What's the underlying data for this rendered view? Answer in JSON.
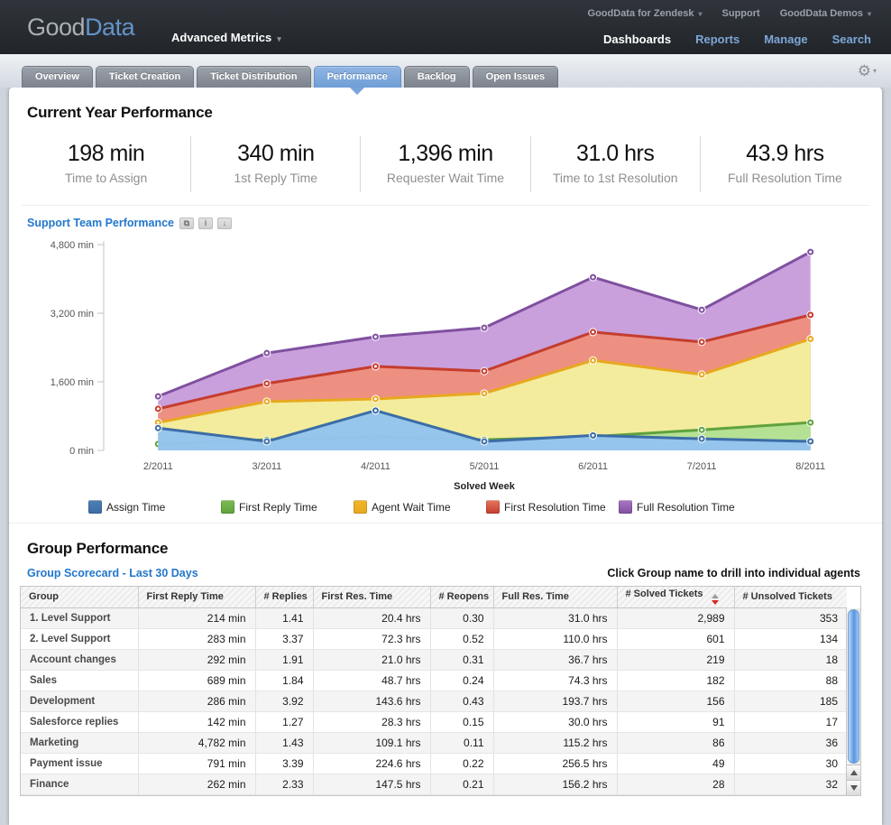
{
  "header": {
    "logo": {
      "part1": "Good",
      "part2": "Data"
    },
    "project_selector": "Advanced Metrics",
    "top_links": [
      {
        "label": "GoodData for Zendesk",
        "caret": true
      },
      {
        "label": "Support",
        "caret": false
      },
      {
        "label": "GoodData Demos",
        "caret": true
      }
    ],
    "nav": [
      {
        "label": "Dashboards",
        "active": true
      },
      {
        "label": "Reports",
        "active": false
      },
      {
        "label": "Manage",
        "active": false
      },
      {
        "label": "Search",
        "active": false
      }
    ]
  },
  "tabs": [
    {
      "label": "Overview",
      "active": false
    },
    {
      "label": "Ticket Creation",
      "active": false
    },
    {
      "label": "Ticket Distribution",
      "active": false
    },
    {
      "label": "Performance",
      "active": true
    },
    {
      "label": "Backlog",
      "active": false
    },
    {
      "label": "Open Issues",
      "active": false
    }
  ],
  "kpis": {
    "title": "Current Year Performance",
    "items": [
      {
        "value": "198 min",
        "label": "Time to Assign"
      },
      {
        "value": "340 min",
        "label": "1st Reply Time"
      },
      {
        "value": "1,396 min",
        "label": "Requester Wait Time"
      },
      {
        "value": "31.0 hrs",
        "label": "Time to 1st Resolution"
      },
      {
        "value": "43.9 hrs",
        "label": "Full Resolution Time"
      }
    ]
  },
  "chart": {
    "title": "Support Team Performance",
    "icons": [
      "export-icon",
      "info-icon",
      "download-icon"
    ]
  },
  "chart_data": {
    "type": "area",
    "title": "Support Team Performance",
    "x": [
      "2/2011",
      "3/2011",
      "4/2011",
      "5/2011",
      "6/2011",
      "7/2011",
      "8/2011"
    ],
    "xlabel": "Solved Week",
    "ylim": [
      0,
      4800
    ],
    "yticks": [
      0,
      1600,
      3200,
      4800
    ],
    "ytick_labels": [
      "0 min",
      "1,600 min",
      "3,200 min",
      "4,800 min"
    ],
    "grid": false,
    "legend_position": "bottom",
    "series": [
      {
        "name": "Assign Time",
        "line": "#3c6da6",
        "fill": "#94c4ee",
        "swatch": "#4e80b4",
        "values": [
          520,
          210,
          930,
          210,
          350,
          270,
          210
        ]
      },
      {
        "name": "First Reply Time",
        "line": "#5fa23d",
        "fill": "#b2e094",
        "swatch": "#7cbb51",
        "values": [
          150,
          250,
          320,
          250,
          320,
          480,
          650
        ]
      },
      {
        "name": "Agent Wait Time",
        "line": "#e8a81f",
        "fill": "#f2ee9d",
        "swatch": "#f0b62c",
        "values": [
          650,
          1140,
          1200,
          1330,
          2100,
          1770,
          2600
        ]
      },
      {
        "name": "First Resolution Time",
        "line": "#c43d2e",
        "fill": "#ed8f7f",
        "swatch": "#e5765c",
        "values": [
          970,
          1560,
          1960,
          1850,
          2760,
          2530,
          3160
        ]
      },
      {
        "name": "Full Resolution Time",
        "line": "#7f509f",
        "fill": "#c79ddb",
        "swatch": "#ab77c6",
        "values": [
          1260,
          2270,
          2650,
          2860,
          4040,
          3280,
          4630
        ]
      }
    ]
  },
  "group_performance": {
    "title": "Group Performance",
    "subtitle": "Group Scorecard - Last 30 Days",
    "hint": "Click Group name to drill into individual agents",
    "table": {
      "columns": [
        "Group",
        "First Reply Time",
        "# Replies",
        "First Res. Time",
        "# Reopens",
        "Full Res. Time",
        "# Solved Tickets",
        "# Unsolved Tickets"
      ],
      "sort_column": "# Solved Tickets",
      "sort_direction": "desc",
      "rows": [
        [
          "1. Level Support",
          "214 min",
          "1.41",
          "20.4 hrs",
          "0.30",
          "31.0 hrs",
          "2,989",
          "353"
        ],
        [
          "2. Level Support",
          "283 min",
          "3.37",
          "72.3 hrs",
          "0.52",
          "110.0 hrs",
          "601",
          "134"
        ],
        [
          "Account changes",
          "292 min",
          "1.91",
          "21.0 hrs",
          "0.31",
          "36.7 hrs",
          "219",
          "18"
        ],
        [
          "Sales",
          "689 min",
          "1.84",
          "48.7 hrs",
          "0.24",
          "74.3 hrs",
          "182",
          "88"
        ],
        [
          "Development",
          "286 min",
          "3.92",
          "143.6 hrs",
          "0.43",
          "193.7 hrs",
          "156",
          "185"
        ],
        [
          "Salesforce replies",
          "142 min",
          "1.27",
          "28.3 hrs",
          "0.15",
          "30.0 hrs",
          "91",
          "17"
        ],
        [
          "Marketing",
          "4,782 min",
          "1.43",
          "109.1 hrs",
          "0.11",
          "115.2 hrs",
          "86",
          "36"
        ],
        [
          "Payment issue",
          "791 min",
          "3.39",
          "224.6 hrs",
          "0.22",
          "256.5 hrs",
          "49",
          "30"
        ],
        [
          "Finance",
          "262 min",
          "2.33",
          "147.5 hrs",
          "0.21",
          "156.2 hrs",
          "28",
          "32"
        ]
      ]
    }
  }
}
